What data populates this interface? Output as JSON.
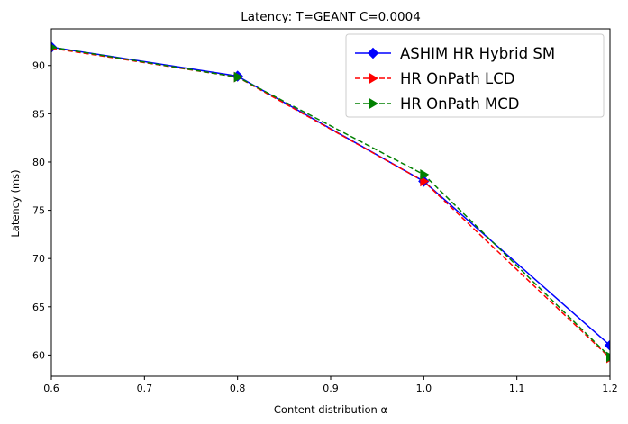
{
  "chart_data": {
    "type": "line",
    "title": "Latency: T=GEANT C=0.0004",
    "xlabel": "Content distribution α",
    "ylabel": "Latency (ms)",
    "xlim": [
      0.6,
      1.2
    ],
    "ylim": [
      57.8,
      93.8
    ],
    "xticks": [
      0.6,
      0.7,
      0.8,
      0.9,
      1.0,
      1.1,
      1.2
    ],
    "xtick_labels": [
      "0.6",
      "0.7",
      "0.8",
      "0.9",
      "1.0",
      "1.1",
      "1.2"
    ],
    "yticks": [
      60,
      65,
      70,
      75,
      80,
      85,
      90
    ],
    "ytick_labels": [
      "60",
      "65",
      "70",
      "75",
      "80",
      "85",
      "90"
    ],
    "grid": false,
    "legend_position": "top-right",
    "x": [
      0.6,
      0.8,
      1.0,
      1.2
    ],
    "series": [
      {
        "name": "ASHIM HR Hybrid SM",
        "values": [
          91.9,
          88.9,
          78.0,
          61.0
        ],
        "color": "#0000ff",
        "marker": "diamond",
        "dash": "solid"
      },
      {
        "name": "HR OnPath LCD",
        "values": [
          91.8,
          88.8,
          78.0,
          59.7
        ],
        "color": "#ff0000",
        "marker": "triangle-right",
        "dash": "dashed"
      },
      {
        "name": "HR OnPath MCD",
        "values": [
          91.9,
          88.8,
          78.7,
          59.8
        ],
        "color": "#008000",
        "marker": "triangle-right",
        "dash": "dashed"
      }
    ]
  }
}
